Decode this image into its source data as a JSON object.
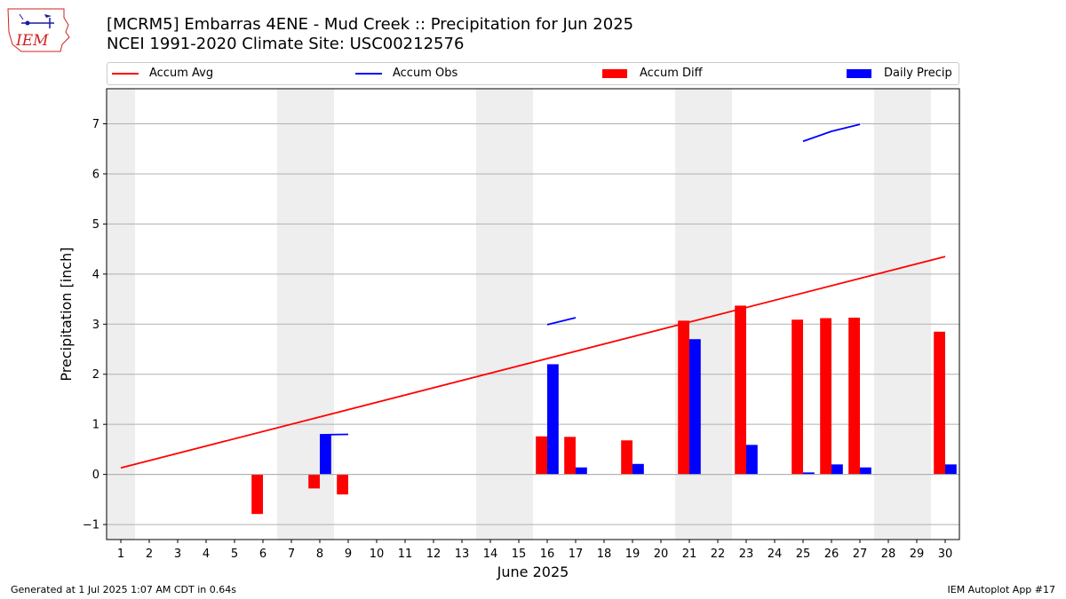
{
  "header": {
    "title": "[MCRM5] Embarras 4ENE - Mud Creek :: Precipitation for Jun 2025",
    "subtitle": "NCEI 1991-2020 Climate Site: USC00212576"
  },
  "logo": {
    "text": "IEM",
    "icon": "iem-state-logo-icon"
  },
  "legend": [
    {
      "label": "Accum Avg",
      "color": "#ff0000",
      "kind": "line"
    },
    {
      "label": "Accum Obs",
      "color": "#0000ff",
      "kind": "line"
    },
    {
      "label": "Accum Diff",
      "color": "#ff0000",
      "kind": "bar"
    },
    {
      "label": "Daily Precip",
      "color": "#0000ff",
      "kind": "bar"
    }
  ],
  "footer": {
    "left": "Generated at 1 Jul 2025 1:07 AM CDT in 0.64s",
    "right": "IEM Autoplot App #17"
  },
  "chart_data": {
    "type": "bar",
    "title": "[MCRM5] Embarras 4ENE - Mud Creek :: Precipitation for Jun 2025",
    "xlabel": "June 2025",
    "ylabel": "Precipitation [inch]",
    "xlim": [
      0.5,
      30.5
    ],
    "ylim": [
      -1.3,
      7.7
    ],
    "yticks": [
      -1,
      0,
      1,
      2,
      3,
      4,
      5,
      6,
      7
    ],
    "grid": "y",
    "legend_position": "top",
    "weekend_shading": [
      [
        0.5,
        1.5
      ],
      [
        6.5,
        8.5
      ],
      [
        13.5,
        15.5
      ],
      [
        20.5,
        22.5
      ],
      [
        27.5,
        29.5
      ]
    ],
    "categories": [
      "1",
      "2",
      "3",
      "4",
      "5",
      "6",
      "7",
      "8",
      "9",
      "10",
      "11",
      "12",
      "13",
      "14",
      "15",
      "16",
      "17",
      "18",
      "19",
      "20",
      "21",
      "22",
      "23",
      "24",
      "25",
      "26",
      "27",
      "28",
      "29",
      "30"
    ],
    "series": [
      {
        "name": "Accum Avg",
        "type": "line",
        "color": "#ff0000",
        "x": [
          1,
          30
        ],
        "values": [
          0.13,
          4.35
        ]
      },
      {
        "name": "Accum Obs",
        "type": "line",
        "color": "#0000ff",
        "segments": [
          {
            "x": [
              8,
              9
            ],
            "values": [
              0.79,
              0.8
            ]
          },
          {
            "x": [
              16,
              17
            ],
            "values": [
              2.99,
              3.13
            ]
          },
          {
            "x": [
              25,
              26,
              27
            ],
            "values": [
              6.65,
              6.85,
              6.99
            ]
          }
        ]
      },
      {
        "name": "Accum Diff",
        "type": "bar",
        "color": "#ff0000",
        "x": [
          6,
          8,
          9,
          16,
          17,
          19,
          21,
          23,
          25,
          26,
          27,
          30
        ],
        "values": [
          -0.79,
          -0.28,
          -0.4,
          0.76,
          0.75,
          0.68,
          3.07,
          3.37,
          3.09,
          3.12,
          3.13,
          2.85
        ]
      },
      {
        "name": "Daily Precip",
        "type": "bar",
        "color": "#0000ff",
        "x": [
          8,
          16,
          17,
          19,
          21,
          23,
          25,
          26,
          27,
          30
        ],
        "values": [
          0.79,
          2.2,
          0.14,
          0.21,
          2.7,
          0.59,
          0.04,
          0.2,
          0.14,
          0.2
        ]
      }
    ]
  }
}
